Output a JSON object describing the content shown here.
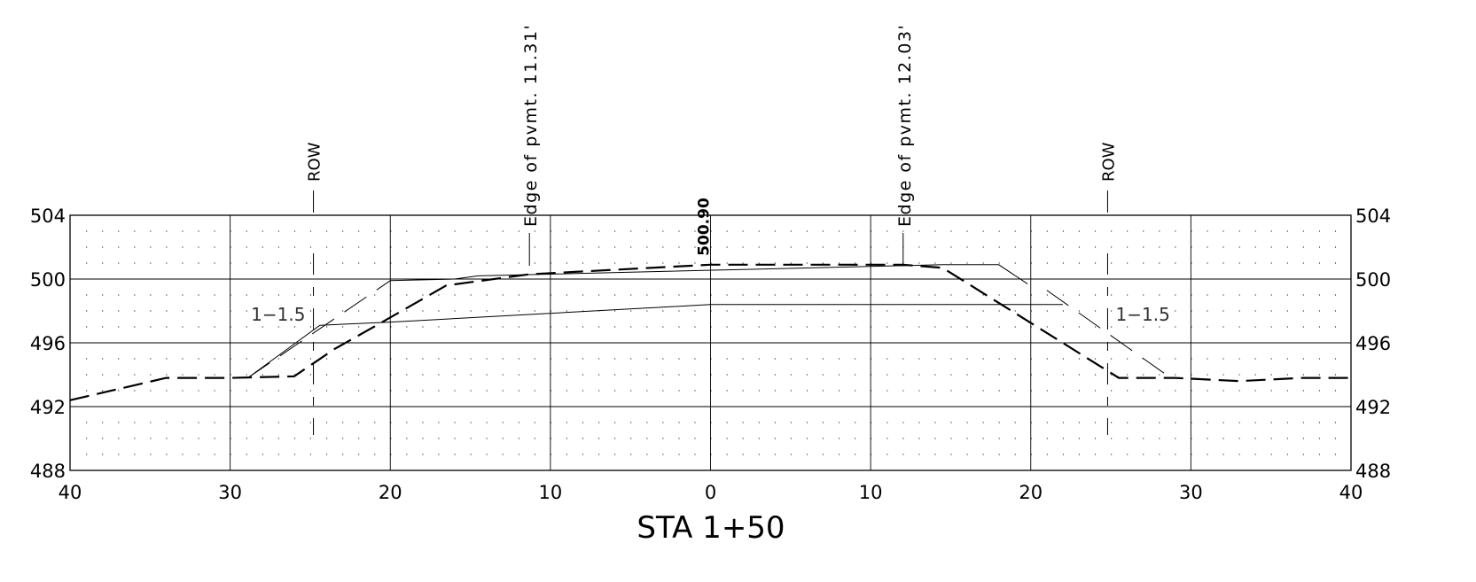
{
  "title": "STA 1+50",
  "chart_data": {
    "type": "line",
    "title": "STA 1+50",
    "xlabel": "",
    "ylabel": "",
    "xlim": [
      -40,
      40
    ],
    "ylim": [
      488,
      504
    ],
    "x_ticks": [
      -40,
      -30,
      -20,
      -10,
      0,
      10,
      20,
      30,
      40
    ],
    "x_tick_labels": [
      "40",
      "30",
      "20",
      "10",
      "0",
      "10",
      "20",
      "30",
      "40"
    ],
    "y_ticks": [
      488,
      492,
      496,
      500,
      504
    ],
    "y_tick_labels": [
      "488",
      "492",
      "496",
      "500",
      "504"
    ],
    "grid": true,
    "series": [
      {
        "style": "dashed",
        "points": [
          [
            -40,
            492.4
          ],
          [
            -34,
            493.8
          ],
          [
            -30,
            493.8
          ],
          [
            -26,
            493.9
          ],
          [
            -23.5,
            495.6
          ],
          [
            -20.5,
            497.3
          ],
          [
            -16.5,
            499.6
          ],
          [
            -11.3,
            500.3
          ],
          [
            0,
            500.9
          ],
          [
            12,
            500.9
          ],
          [
            14.5,
            500.7
          ],
          [
            25.5,
            493.8
          ],
          [
            29,
            493.8
          ],
          [
            33,
            493.6
          ],
          [
            37,
            493.8
          ],
          [
            40,
            493.8
          ]
        ]
      },
      {
        "style": "solid",
        "points": [
          [
            -28.9,
            493.8
          ],
          [
            -24.4,
            497.1
          ],
          [
            -20,
            497.3
          ],
          [
            0,
            498.4
          ],
          [
            22,
            498.4
          ]
        ]
      },
      {
        "style": "solid",
        "points": [
          [
            -20,
            499.9
          ],
          [
            -16,
            500.0
          ],
          [
            -14.5,
            500.2
          ],
          [
            14.5,
            500.9
          ],
          [
            18,
            500.9
          ],
          [
            19.8,
            499.7
          ]
        ]
      }
    ],
    "slope_markers": [
      {
        "label": "1−1.5",
        "side": "left",
        "points": [
          [
            -28.9,
            493.8
          ],
          [
            -20,
            499.9
          ]
        ],
        "label_at": [
          -27,
          497.5
        ]
      },
      {
        "label": "1−1.5",
        "side": "right",
        "points": [
          [
            21,
            499.3
          ],
          [
            28.6,
            493.9
          ]
        ],
        "label_at": [
          27,
          497.5
        ]
      }
    ],
    "annotations": [
      {
        "text": "ROW",
        "x": -24.8
      },
      {
        "text": "ROW",
        "x": 24.8
      },
      {
        "text": "Edge of pvmt. 11.31'",
        "x": -11.31
      },
      {
        "text": "Edge of pvmt. 12.03'",
        "x": 12.03
      },
      {
        "text": "500.90",
        "x": 0,
        "y": 500.9
      }
    ]
  }
}
